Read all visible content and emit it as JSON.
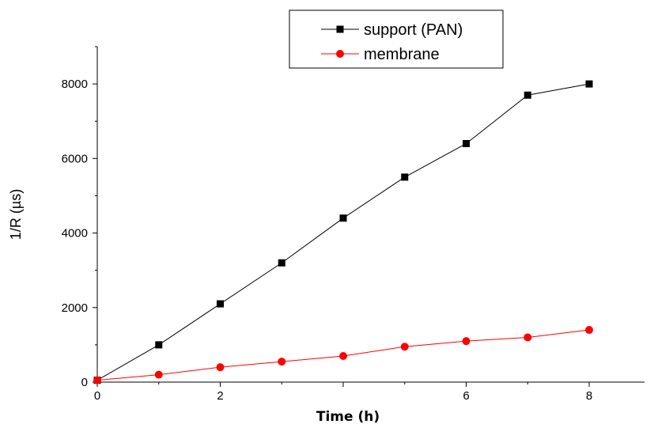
{
  "chart_data": {
    "type": "line",
    "xlabel": "Time (h)",
    "ylabel": "1/R (µs)",
    "xlim": [
      0,
      8.9
    ],
    "ylim": [
      0,
      9000
    ],
    "xticks": [
      0,
      2,
      4,
      6,
      8
    ],
    "xtick_labels": [
      "0",
      "2",
      "",
      "6",
      "8"
    ],
    "yticks": [
      0,
      2000,
      4000,
      6000,
      8000
    ],
    "ytick_labels": [
      "0",
      "2000",
      "4000",
      "6000",
      "8000"
    ],
    "grid": false,
    "legend_position": "top-center",
    "series": [
      {
        "name": "support (PAN)",
        "color": "#000000",
        "marker": "square",
        "x": [
          0,
          1,
          2,
          3,
          4,
          5,
          6,
          7,
          8
        ],
        "y": [
          50,
          1000,
          2100,
          3200,
          4400,
          5500,
          6400,
          7700,
          8000
        ]
      },
      {
        "name": "membrane",
        "color": "#ff0000",
        "marker": "circle",
        "x": [
          0,
          1,
          2,
          3,
          4,
          5,
          6,
          7,
          8
        ],
        "y": [
          50,
          200,
          400,
          550,
          700,
          950,
          1100,
          1200,
          1400
        ]
      }
    ]
  }
}
